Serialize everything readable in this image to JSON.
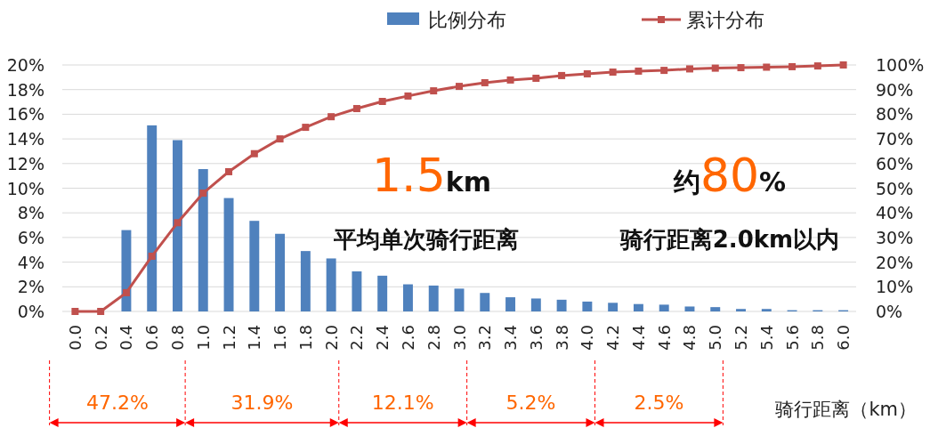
{
  "chart_data": {
    "type": "bar",
    "xlabel": "骑行距离（km）",
    "categories": [
      "0.0",
      "0.2",
      "0.4",
      "0.6",
      "0.8",
      "1.0",
      "1.2",
      "1.4",
      "1.6",
      "1.8",
      "2.0",
      "2.2",
      "2.4",
      "2.6",
      "2.8",
      "3.0",
      "3.2",
      "3.4",
      "3.6",
      "3.8",
      "4.0",
      "4.2",
      "4.4",
      "4.6",
      "4.8",
      "5.0",
      "5.2",
      "5.4",
      "5.6",
      "5.8",
      "6.0"
    ],
    "series": [
      {
        "name": "比例分布",
        "color": "#4f81bd",
        "values": [
          0,
          0,
          6.6,
          15.1,
          13.9,
          11.55,
          9.2,
          7.35,
          6.3,
          4.9,
          4.3,
          3.25,
          2.9,
          2.2,
          2.1,
          1.85,
          1.5,
          1.15,
          1.05,
          0.95,
          0.8,
          0.7,
          0.6,
          0.55,
          0.4,
          0.35,
          0.2,
          0.2,
          0.1,
          0.1,
          0.1
        ]
      },
      {
        "name": "累计分布",
        "type": "line",
        "axis": "y2",
        "color": "#c0504d",
        "marker": "square",
        "values": [
          0,
          0,
          7.6,
          22.4,
          36,
          48,
          56.7,
          64,
          70,
          74.7,
          79,
          82.3,
          85.2,
          87.4,
          89.5,
          91.3,
          92.8,
          93.9,
          94.6,
          95.7,
          96.4,
          97.1,
          97.5,
          97.8,
          98.4,
          98.7,
          98.9,
          99.1,
          99.3,
          99.6,
          100
        ]
      }
    ],
    "ylim": [
      0,
      20
    ],
    "yticks": [
      {
        "value": 0,
        "label": "0%"
      },
      {
        "value": 2,
        "label": "2%"
      },
      {
        "value": 4,
        "label": "4%"
      },
      {
        "value": 6,
        "label": "6%"
      },
      {
        "value": 8,
        "label": "8%"
      },
      {
        "value": 10,
        "label": "10%"
      },
      {
        "value": 12,
        "label": "12%"
      },
      {
        "value": 14,
        "label": "14%"
      },
      {
        "value": 16,
        "label": "16%"
      },
      {
        "value": 18,
        "label": "18%"
      },
      {
        "value": 20,
        "label": "20%"
      }
    ],
    "y2lim": [
      0,
      100
    ],
    "y2ticks": [
      {
        "value": 0,
        "label": "0%"
      },
      {
        "value": 10,
        "label": "10%"
      },
      {
        "value": 20,
        "label": "20%"
      },
      {
        "value": 30,
        "label": "30%"
      },
      {
        "value": 40,
        "label": "40%"
      },
      {
        "value": 50,
        "label": "50%"
      },
      {
        "value": 60,
        "label": "60%"
      },
      {
        "value": 70,
        "label": "70%"
      },
      {
        "value": 80,
        "label": "80%"
      },
      {
        "value": 90,
        "label": "90%"
      },
      {
        "value": 100,
        "label": "100%"
      }
    ],
    "grid": "y",
    "legend": "top",
    "annotations": [
      "1.5km",
      "平均单次骑行距离",
      "约80%",
      "骑行距离2.0km以内",
      "47.2%",
      "31.9%",
      "12.1%",
      "5.2%",
      "2.5%"
    ]
  }
}
